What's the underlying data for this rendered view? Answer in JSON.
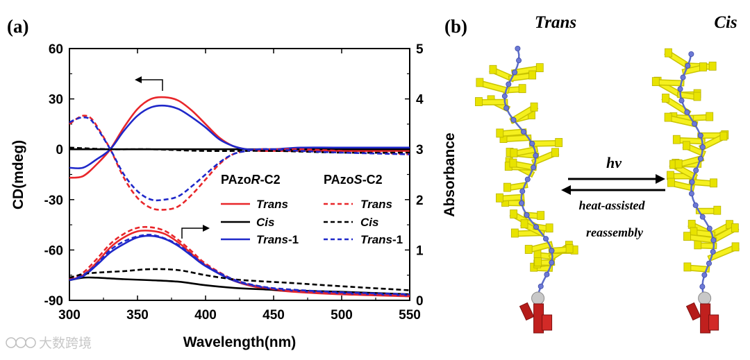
{
  "panel_a": {
    "label": "(a)",
    "chart_data": {
      "type": "line",
      "xlabel": "Wavelength(nm)",
      "ylabel": "CD(mdeg)",
      "y2label": "Absorbance",
      "xlim": [
        300,
        550
      ],
      "ylim": [
        -90,
        60
      ],
      "y2lim": [
        0,
        5
      ],
      "xticks": [
        300,
        350,
        400,
        450,
        500,
        550
      ],
      "yticks": [
        60,
        30,
        0,
        -30,
        -60,
        -90
      ],
      "y2ticks": [
        5,
        4,
        3,
        2,
        1,
        0
      ],
      "legend": {
        "left_title": "PAzoR-C2",
        "right_title": "PAzoS-C2",
        "left_title_parts": [
          "PAzo",
          "R",
          "-C2"
        ],
        "right_title_parts": [
          "PAzo",
          "S",
          "-C2"
        ],
        "entries": [
          {
            "label": "Trans",
            "suffix": ""
          },
          {
            "label": "Cis",
            "suffix": ""
          },
          {
            "label": "Trans",
            "suffix": "-1"
          }
        ]
      },
      "series": [
        {
          "name": "PAzoR-C2 Trans CD",
          "axis": "left",
          "color": "#e8262a",
          "dash": "solid",
          "x": [
            300,
            310,
            320,
            330,
            340,
            350,
            360,
            370,
            380,
            390,
            400,
            410,
            420,
            430,
            440,
            450,
            470,
            500,
            550
          ],
          "y": [
            -17,
            -16,
            -9,
            0,
            13,
            24,
            30,
            31,
            29,
            23,
            15,
            7,
            2,
            0,
            -1,
            -1,
            -1,
            -1,
            -1
          ]
        },
        {
          "name": "PAzoR-C2 Cis CD",
          "axis": "left",
          "color": "#000000",
          "dash": "solid",
          "x": [
            300,
            330,
            360,
            400,
            450,
            500,
            550
          ],
          "y": [
            0,
            0,
            0,
            0,
            0,
            0,
            0
          ]
        },
        {
          "name": "PAzoR-C2 Trans-1 CD",
          "axis": "left",
          "color": "#1f28c9",
          "dash": "solid",
          "x": [
            300,
            310,
            320,
            330,
            340,
            350,
            360,
            370,
            380,
            390,
            400,
            410,
            420,
            430,
            440,
            450,
            470,
            500,
            550
          ],
          "y": [
            -11,
            -11,
            -6,
            0,
            11,
            20,
            25,
            26,
            24,
            19,
            13,
            6,
            2,
            0,
            0,
            0,
            1,
            1,
            1
          ]
        },
        {
          "name": "PAzoS-C2 Trans CD",
          "axis": "left",
          "color": "#e8262a",
          "dash": "dash",
          "x": [
            300,
            305,
            310,
            315,
            320,
            330,
            340,
            350,
            360,
            370,
            380,
            390,
            400,
            410,
            420,
            430,
            440,
            450,
            470,
            500,
            550
          ],
          "y": [
            15,
            18,
            20,
            19,
            14,
            0,
            -17,
            -29,
            -35,
            -36,
            -34,
            -27,
            -18,
            -9,
            -3,
            -1,
            0,
            0,
            0,
            -1,
            -3
          ]
        },
        {
          "name": "PAzoS-C2 Cis CD",
          "axis": "left",
          "color": "#000000",
          "dash": "dash",
          "x": [
            300,
            330,
            360,
            400,
            450,
            500,
            550
          ],
          "y": [
            1,
            0,
            0,
            -1,
            -1,
            -2,
            -2
          ]
        },
        {
          "name": "PAzoS-C2 Trans-1 CD",
          "axis": "left",
          "color": "#1f28c9",
          "dash": "dash",
          "x": [
            300,
            305,
            310,
            315,
            320,
            330,
            340,
            350,
            360,
            370,
            380,
            390,
            400,
            410,
            420,
            430,
            440,
            450,
            470,
            500,
            550
          ],
          "y": [
            16,
            18,
            19,
            18,
            13,
            0,
            -15,
            -25,
            -30,
            -30,
            -28,
            -22,
            -15,
            -8,
            -3,
            -1,
            0,
            0,
            -1,
            -2,
            -3
          ]
        },
        {
          "name": "PAzoR-C2 Trans Abs",
          "axis": "right",
          "color": "#e8262a",
          "dash": "solid",
          "x": [
            300,
            310,
            320,
            330,
            340,
            350,
            360,
            370,
            380,
            390,
            400,
            420,
            440,
            460,
            500,
            550
          ],
          "y": [
            0.4,
            0.5,
            0.75,
            1.05,
            1.25,
            1.37,
            1.38,
            1.32,
            1.15,
            0.92,
            0.7,
            0.4,
            0.25,
            0.18,
            0.12,
            0.08
          ]
        },
        {
          "name": "PAzoR-C2 Cis Abs",
          "axis": "right",
          "color": "#000000",
          "dash": "solid",
          "x": [
            300,
            310,
            320,
            340,
            360,
            380,
            400,
            420,
            440,
            460,
            500,
            550
          ],
          "y": [
            0.4,
            0.45,
            0.45,
            0.42,
            0.4,
            0.37,
            0.3,
            0.25,
            0.22,
            0.2,
            0.17,
            0.12
          ]
        },
        {
          "name": "PAzoR-C2 Trans-1 Abs",
          "axis": "right",
          "color": "#1f28c9",
          "dash": "solid",
          "x": [
            300,
            310,
            320,
            330,
            340,
            350,
            360,
            370,
            380,
            390,
            400,
            420,
            440,
            460,
            500,
            550
          ],
          "y": [
            0.4,
            0.48,
            0.7,
            0.95,
            1.12,
            1.25,
            1.28,
            1.22,
            1.08,
            0.88,
            0.68,
            0.4,
            0.27,
            0.2,
            0.14,
            0.1
          ]
        },
        {
          "name": "PAzoS-C2 Trans Abs",
          "axis": "right",
          "color": "#e8262a",
          "dash": "dash",
          "x": [
            300,
            310,
            320,
            330,
            340,
            350,
            360,
            370,
            380,
            390,
            400,
            420,
            440,
            460,
            500,
            550
          ],
          "y": [
            0.42,
            0.55,
            0.82,
            1.12,
            1.32,
            1.44,
            1.45,
            1.38,
            1.2,
            0.97,
            0.73,
            0.42,
            0.27,
            0.2,
            0.14,
            0.1
          ]
        },
        {
          "name": "PAzoS-C2 Cis Abs",
          "axis": "right",
          "color": "#000000",
          "dash": "dash",
          "x": [
            300,
            310,
            320,
            340,
            360,
            380,
            400,
            420,
            440,
            460,
            500,
            550
          ],
          "y": [
            0.45,
            0.52,
            0.55,
            0.58,
            0.62,
            0.6,
            0.5,
            0.42,
            0.38,
            0.35,
            0.28,
            0.2
          ]
        },
        {
          "name": "PAzoS-C2 Trans-1 Abs",
          "axis": "right",
          "color": "#1f28c9",
          "dash": "dash",
          "x": [
            300,
            310,
            320,
            330,
            340,
            350,
            360,
            370,
            380,
            390,
            400,
            420,
            440,
            460,
            500,
            550
          ],
          "y": [
            0.4,
            0.5,
            0.72,
            1.0,
            1.17,
            1.27,
            1.3,
            1.23,
            1.1,
            0.9,
            0.7,
            0.42,
            0.28,
            0.22,
            0.16,
            0.12
          ]
        }
      ]
    }
  },
  "panel_b": {
    "label": "(b)",
    "left_title": "Trans",
    "right_title": "Cis",
    "arrow_top_label": "hv",
    "arrow_bottom_label_1": "heat-assisted",
    "arrow_bottom_label_2": "reassembly"
  },
  "watermark": "大数跨境"
}
